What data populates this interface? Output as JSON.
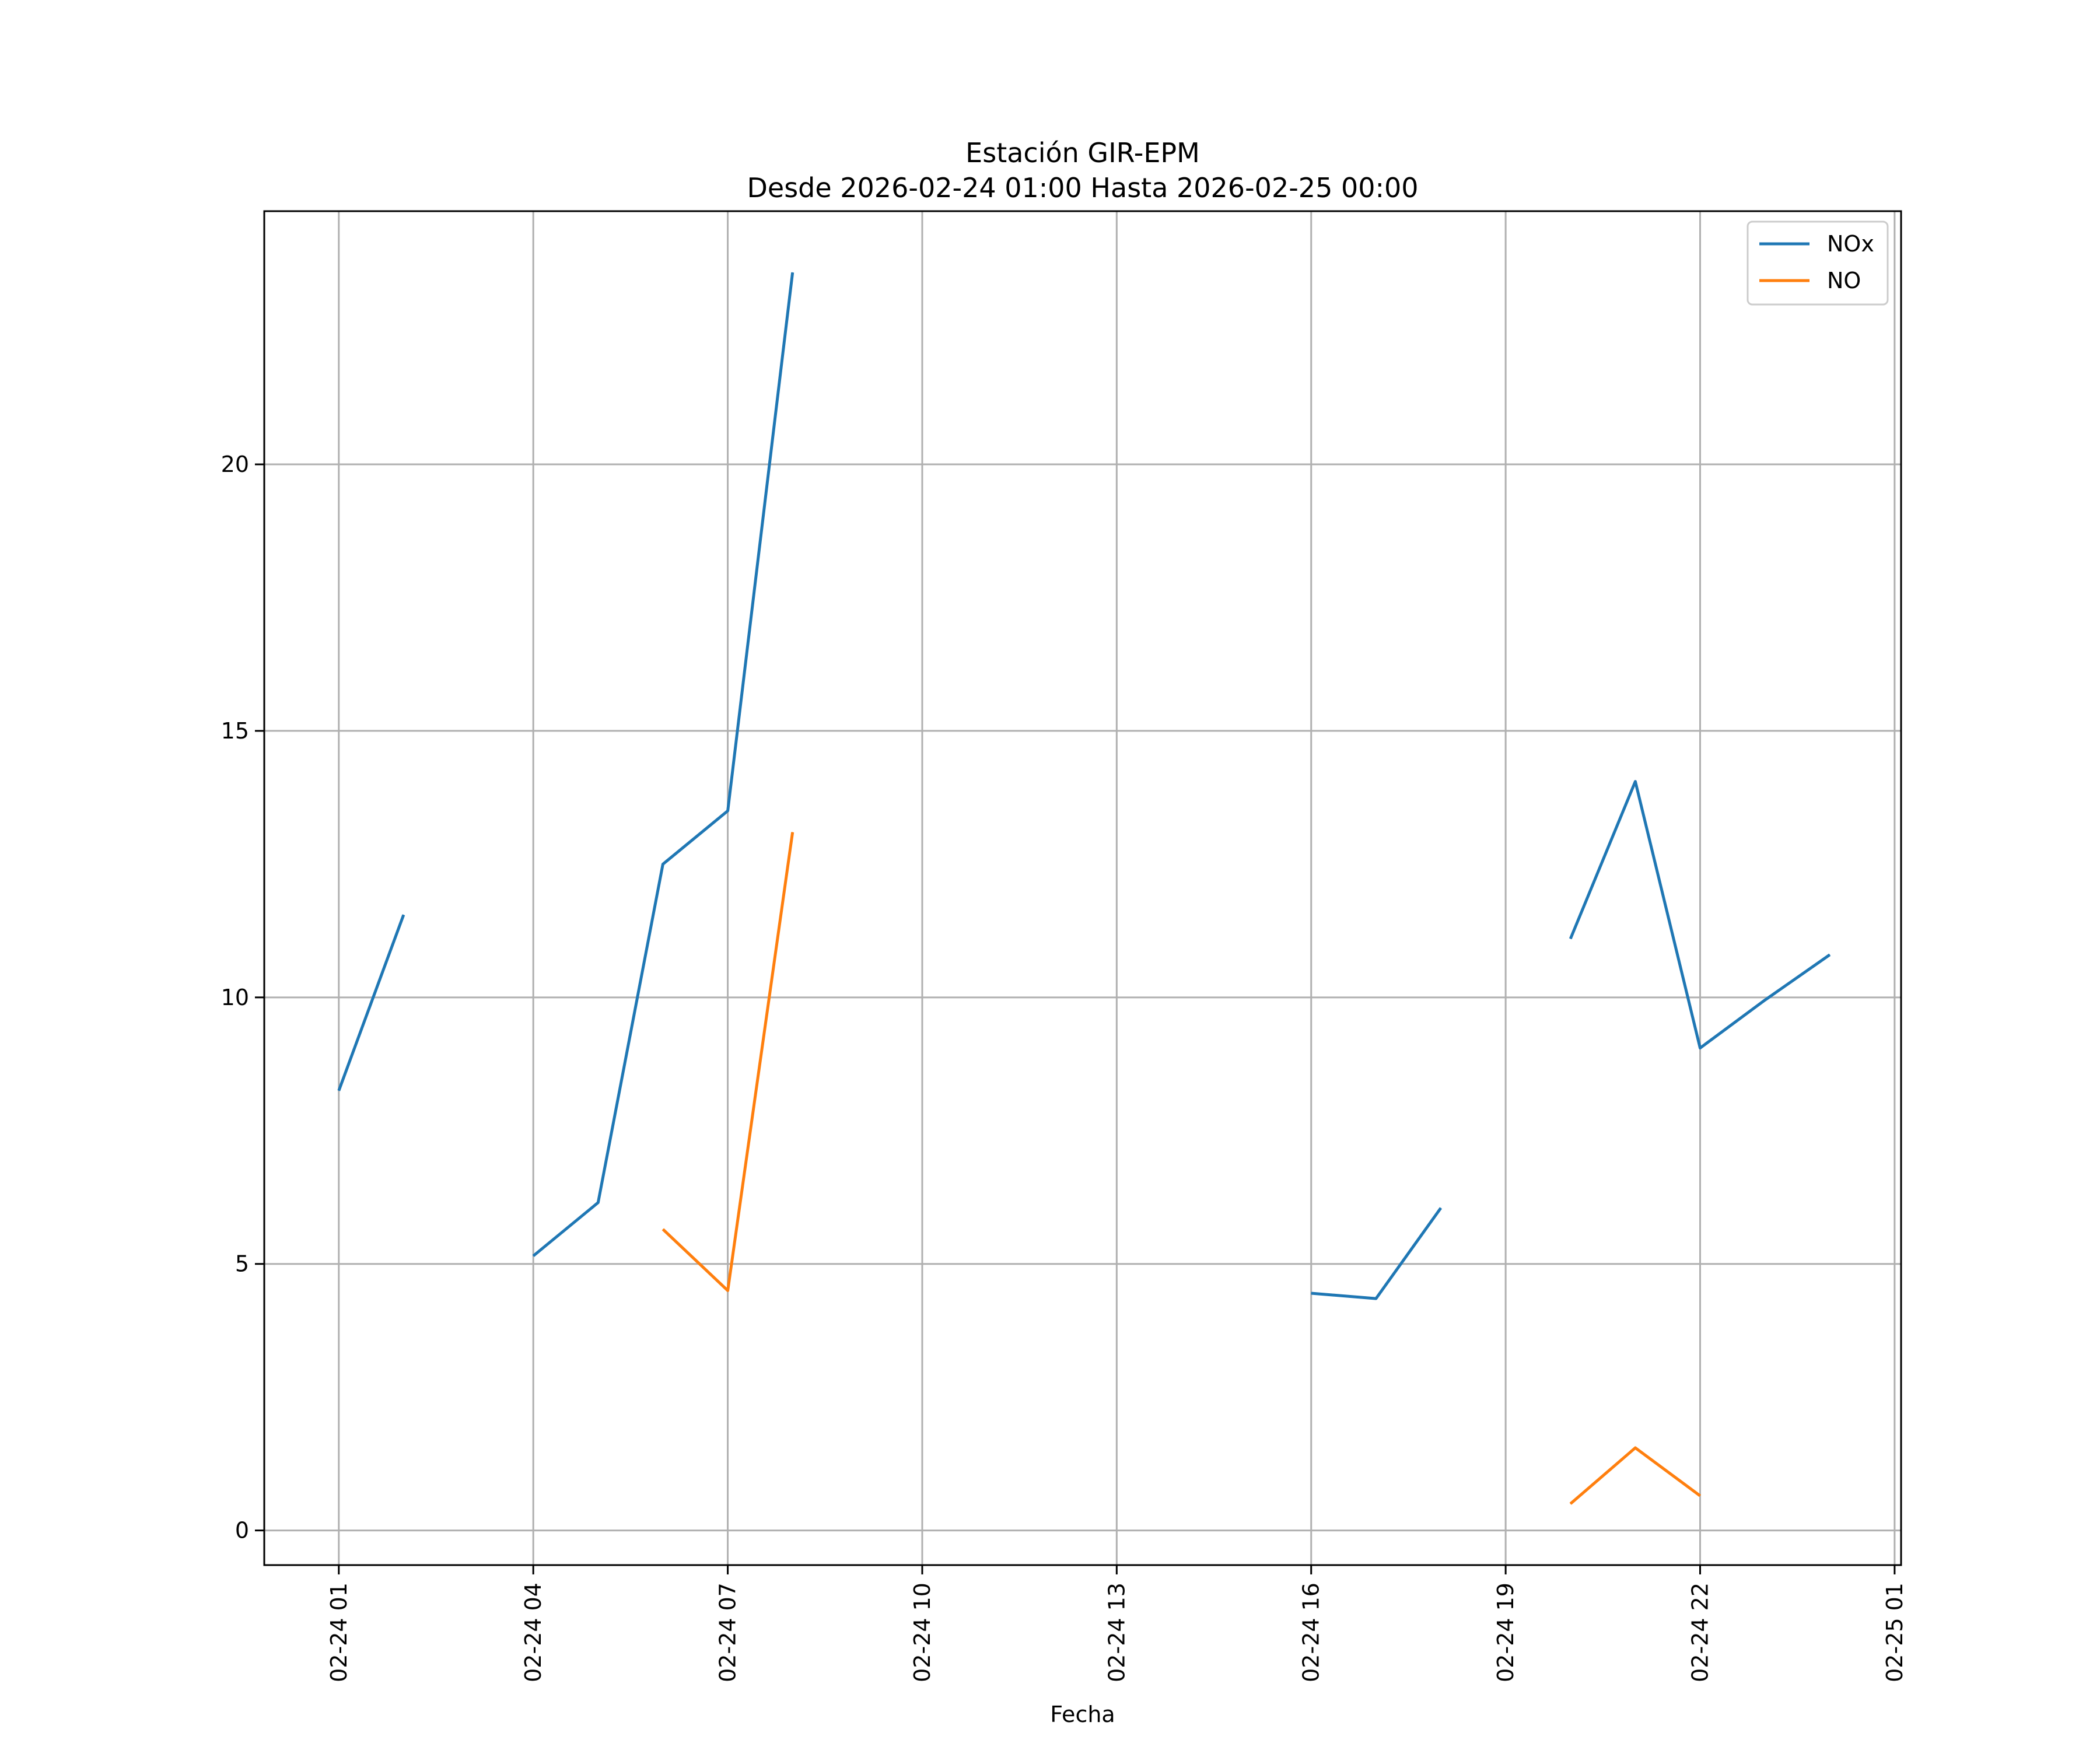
{
  "chart_data": {
    "type": "line",
    "title": "Estación GIR-EPM",
    "subtitle": "Desde 2026-02-24 01:00 Hasta 2026-02-25 00:00",
    "xlabel": "Fecha",
    "ylabel": "",
    "grid": true,
    "legend_position": "top-right",
    "x_ticks": [
      "02-24 01",
      "02-24 04",
      "02-24 07",
      "02-24 10",
      "02-24 13",
      "02-24 16",
      "02-24 19",
      "02-24 22",
      "02-25 01"
    ],
    "y_ticks": [
      "0",
      "5",
      "10",
      "15",
      "20"
    ],
    "x_hours": [
      1,
      2,
      3,
      4,
      5,
      6,
      7,
      8,
      9,
      10,
      11,
      12,
      13,
      14,
      15,
      16,
      17,
      18,
      19,
      20,
      21,
      22,
      23,
      24
    ],
    "ylim": [
      -0.65,
      24.75
    ],
    "xlim": [
      -0.15,
      25.1
    ],
    "series": [
      {
        "name": "NOx",
        "color": "#1f77b4",
        "values": [
          8.25,
          11.55,
          null,
          5.15,
          6.15,
          12.5,
          13.5,
          23.6,
          null,
          null,
          null,
          null,
          null,
          null,
          null,
          4.45,
          4.35,
          6.05,
          null,
          11.1,
          14.05,
          9.05,
          9.95,
          10.8
        ]
      },
      {
        "name": "NO",
        "color": "#ff7f0e",
        "values": [
          null,
          null,
          null,
          null,
          null,
          5.65,
          4.5,
          13.1,
          null,
          null,
          null,
          null,
          null,
          null,
          null,
          null,
          null,
          null,
          null,
          0.5,
          1.55,
          0.65,
          null,
          null
        ]
      }
    ]
  }
}
